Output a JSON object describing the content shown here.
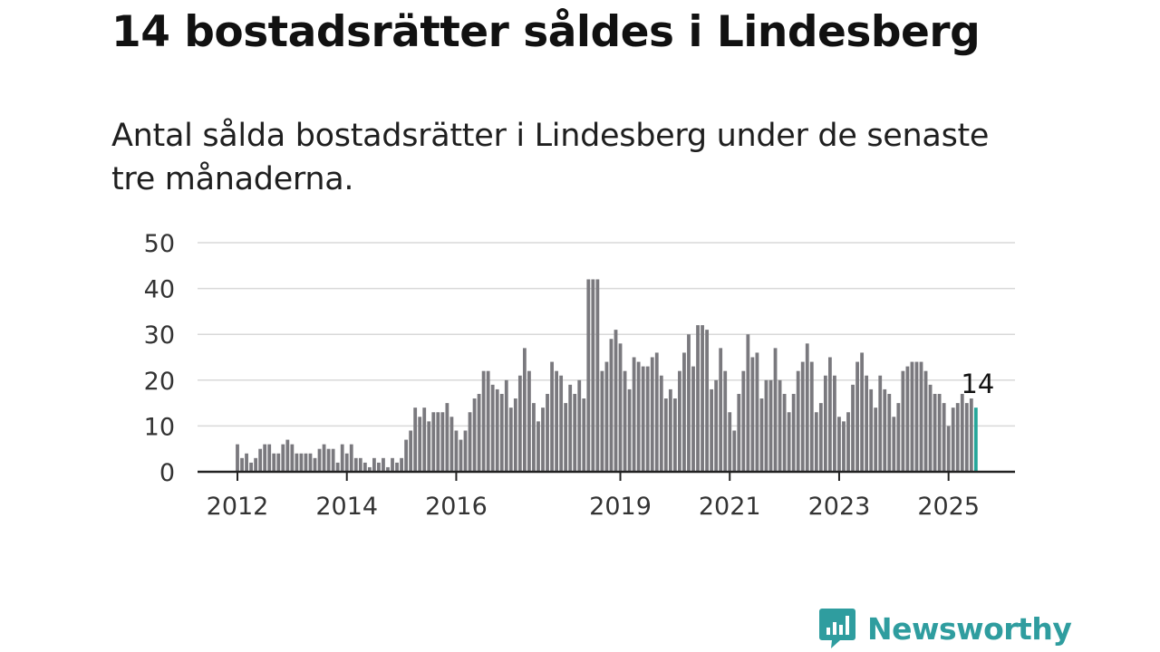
{
  "header": {
    "title": "14 bostadsrätter såldes i Lindesberg",
    "subtitle": "Antal sålda bostadsrätter i Lindesberg under de senaste tre månaderna."
  },
  "brand": {
    "name": "Newsworthy",
    "color": "#2f9d9f",
    "icon": "newsworthy-logo-icon"
  },
  "chart_data": {
    "type": "bar",
    "x_unit": "month",
    "start": "2012-01",
    "ylim": [
      0,
      50
    ],
    "yticks": [
      0,
      10,
      20,
      30,
      40,
      50
    ],
    "xticks": [
      "2012",
      "2014",
      "2016",
      "2019",
      "2021",
      "2023",
      "2025"
    ],
    "grid": true,
    "bar_color": "#7a797e",
    "highlight_color": "#26a69a",
    "highlight_label": "14",
    "values": [
      6,
      3,
      4,
      2,
      3,
      5,
      6,
      6,
      4,
      4,
      6,
      7,
      6,
      4,
      4,
      4,
      4,
      3,
      5,
      6,
      5,
      5,
      2,
      6,
      4,
      6,
      3,
      3,
      2,
      1,
      3,
      2,
      3,
      1,
      3,
      2,
      3,
      7,
      9,
      14,
      12,
      14,
      11,
      13,
      13,
      13,
      15,
      12,
      9,
      7,
      9,
      13,
      16,
      17,
      22,
      22,
      19,
      18,
      17,
      20,
      14,
      16,
      21,
      27,
      22,
      15,
      11,
      14,
      17,
      24,
      22,
      21,
      15,
      19,
      17,
      20,
      16,
      42,
      42,
      42,
      22,
      24,
      29,
      31,
      28,
      22,
      18,
      25,
      24,
      23,
      23,
      25,
      26,
      21,
      16,
      18,
      16,
      22,
      26,
      30,
      23,
      32,
      32,
      31,
      18,
      20,
      27,
      22,
      13,
      9,
      17,
      22,
      30,
      25,
      26,
      16,
      20,
      20,
      27,
      20,
      17,
      13,
      17,
      22,
      24,
      28,
      24,
      13,
      15,
      21,
      25,
      21,
      12,
      11,
      13,
      19,
      24,
      26,
      21,
      18,
      14,
      21,
      18,
      17,
      12,
      15,
      22,
      23,
      24,
      24,
      24,
      22,
      19,
      17,
      17,
      15,
      10,
      14,
      15,
      17,
      15,
      16,
      14
    ]
  }
}
